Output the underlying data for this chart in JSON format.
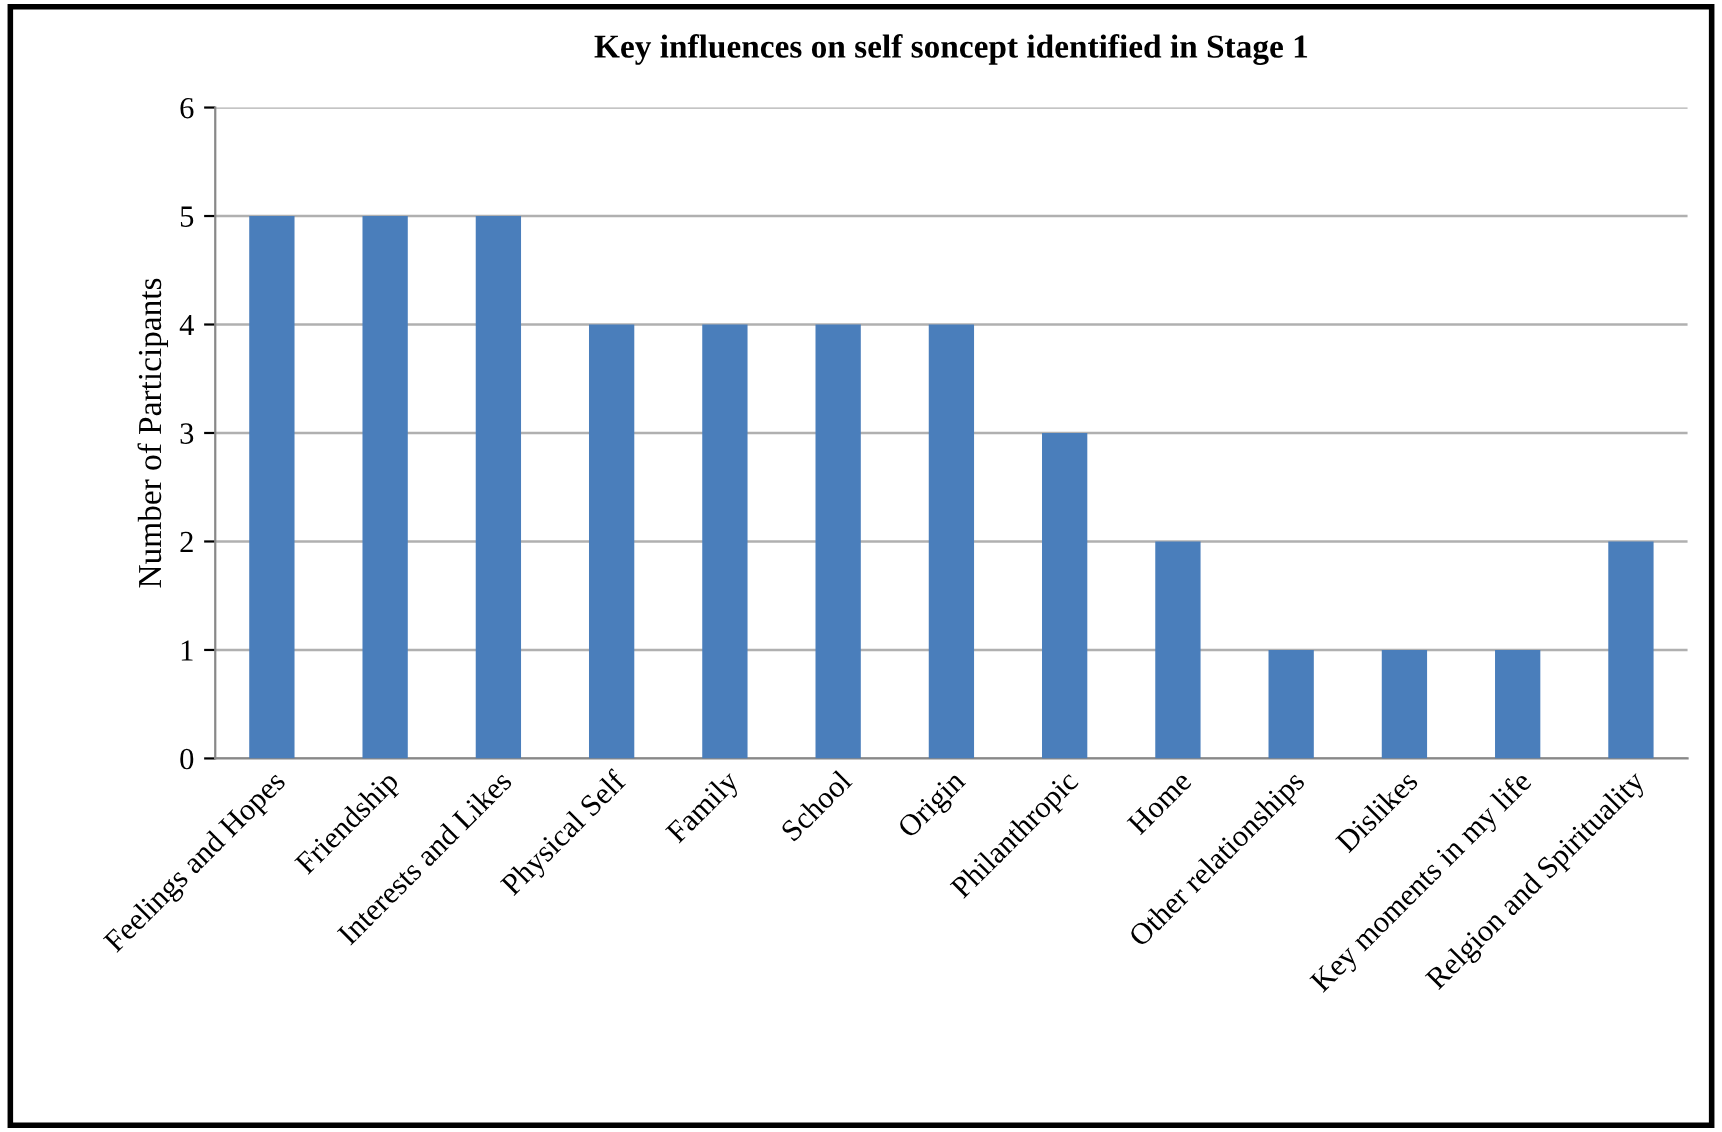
{
  "chart_data": {
    "type": "bar",
    "title": "Key influences on self soncept identified in Stage 1",
    "ylabel": "Number of Participants",
    "categories": [
      "Feelings and Hopes",
      "Friendship",
      "Interests and Likes",
      "Physical Self",
      "Family",
      "School",
      "Origin",
      "Philanthropic",
      "Home",
      "Other relationships",
      "Dislikes",
      "Key moments in my life",
      "Relgion and Spirituality"
    ],
    "values": [
      5,
      5,
      5,
      4,
      4,
      4,
      4,
      3,
      2,
      1,
      1,
      1,
      2
    ],
    "color": "#4a7ebb",
    "ylim": [
      0,
      6
    ],
    "yticks": [
      0,
      1,
      2,
      3,
      4,
      5,
      6
    ],
    "grid": "y"
  }
}
